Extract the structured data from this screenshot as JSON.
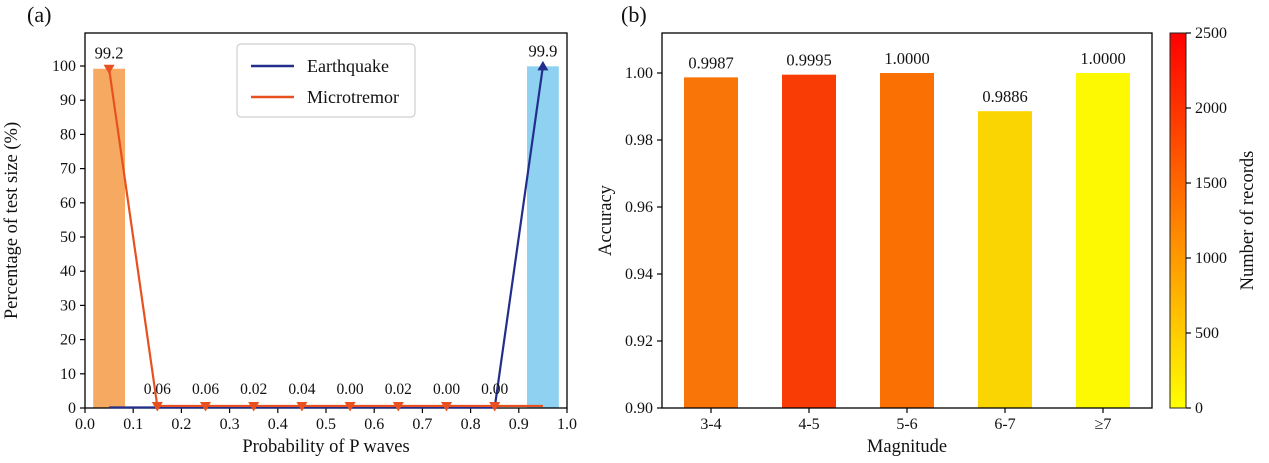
{
  "figure": {
    "background": "#ffffff"
  },
  "chart_data": [
    {
      "panel_tag": "(a)",
      "type": "bar",
      "title": "",
      "xlabel": "Probability of P waves",
      "ylabel": "Percentage of test size (%)",
      "xlim": [
        0.0,
        1.0
      ],
      "ylim": [
        0,
        110
      ],
      "grid": false,
      "xticks": [
        "0.0",
        "0.1",
        "0.2",
        "0.3",
        "0.4",
        "0.5",
        "0.6",
        "0.7",
        "0.8",
        "0.9",
        "1.0"
      ],
      "yticks": [
        "0",
        "10",
        "20",
        "30",
        "40",
        "50",
        "60",
        "70",
        "80",
        "90",
        "100"
      ],
      "bars": [
        {
          "series": "microtremor",
          "x": 0.05,
          "height": 99.2,
          "width": 0.066,
          "color": "#f5a961",
          "label": "99.2",
          "label_color": "#e8511f"
        },
        {
          "series": "earthquake",
          "x": 0.95,
          "height": 99.9,
          "width": 0.066,
          "color": "#8ed1f1",
          "label": "99.9",
          "label_color": "#232e8c"
        }
      ],
      "series": [
        {
          "name": "Earthquake",
          "color": "#232e8c",
          "marker": "triangle-up",
          "x": [
            0.05,
            0.15,
            0.25,
            0.35,
            0.45,
            0.55,
            0.65,
            0.75,
            0.85,
            0.95
          ],
          "y": [
            0.15,
            0.15,
            0.15,
            0.15,
            0.15,
            0.15,
            0.15,
            0.15,
            0.15,
            99.9
          ],
          "markers_at": [
            0.95
          ]
        },
        {
          "name": "Microtremor",
          "color": "#e8511f",
          "marker": "triangle-down",
          "x": [
            0.05,
            0.15,
            0.25,
            0.35,
            0.45,
            0.55,
            0.65,
            0.75,
            0.85,
            0.95
          ],
          "y": [
            99.2,
            0.6,
            0.6,
            0.6,
            0.6,
            0.6,
            0.6,
            0.6,
            0.6,
            0.6
          ],
          "markers_at": [
            0.05,
            0.15,
            0.25,
            0.35,
            0.45,
            0.55,
            0.65,
            0.75,
            0.85
          ]
        }
      ],
      "point_labels": [
        {
          "x": 0.15,
          "text": "0.06",
          "color": "#e8511f"
        },
        {
          "x": 0.25,
          "text": "0.06",
          "color": "#e8511f"
        },
        {
          "x": 0.35,
          "text": "0.02",
          "color": "#e8511f"
        },
        {
          "x": 0.45,
          "text": "0.04",
          "color": "#e8511f"
        },
        {
          "x": 0.55,
          "text": "0.00",
          "color": "#232e8c"
        },
        {
          "x": 0.65,
          "text": "0.02",
          "color": "#232e8c"
        },
        {
          "x": 0.75,
          "text": "0.00",
          "color": "#232e8c"
        },
        {
          "x": 0.85,
          "text": "0.00",
          "color": "#232e8c"
        }
      ],
      "legend": {
        "position": "upper center-left",
        "entries": [
          {
            "label": "Earthquake",
            "color": "#232e8c"
          },
          {
            "label": "Microtremor",
            "color": "#e8511f"
          }
        ]
      }
    },
    {
      "panel_tag": "(b)",
      "type": "bar",
      "title": "",
      "xlabel": "Magnitude",
      "ylabel": "Accuracy",
      "ylim": [
        0.9,
        1.012
      ],
      "grid": false,
      "categories": [
        "3-4",
        "4-5",
        "5-6",
        "6-7",
        "≥7"
      ],
      "values": [
        0.9987,
        0.9995,
        1.0,
        0.9886,
        1.0
      ],
      "value_labels": [
        "0.9987",
        "0.9995",
        "1.0000",
        "0.9886",
        "1.0000"
      ],
      "bar_colors": [
        "#fa7508",
        "#f93b05",
        "#fa7003",
        "#fbd501",
        "#fdf903"
      ],
      "yticks": [
        "0.90",
        "0.92",
        "0.94",
        "0.96",
        "0.98",
        "1.00"
      ],
      "colorbar": {
        "label": "Number of records",
        "min": 0,
        "max": 2500,
        "ticks": [
          "0",
          "500",
          "1000",
          "1500",
          "2000",
          "2500"
        ],
        "gradient": [
          {
            "offset": "0%",
            "color": "#ffff00"
          },
          {
            "offset": "50%",
            "color": "#ff8000"
          },
          {
            "offset": "100%",
            "color": "#ff0000"
          }
        ]
      }
    }
  ]
}
